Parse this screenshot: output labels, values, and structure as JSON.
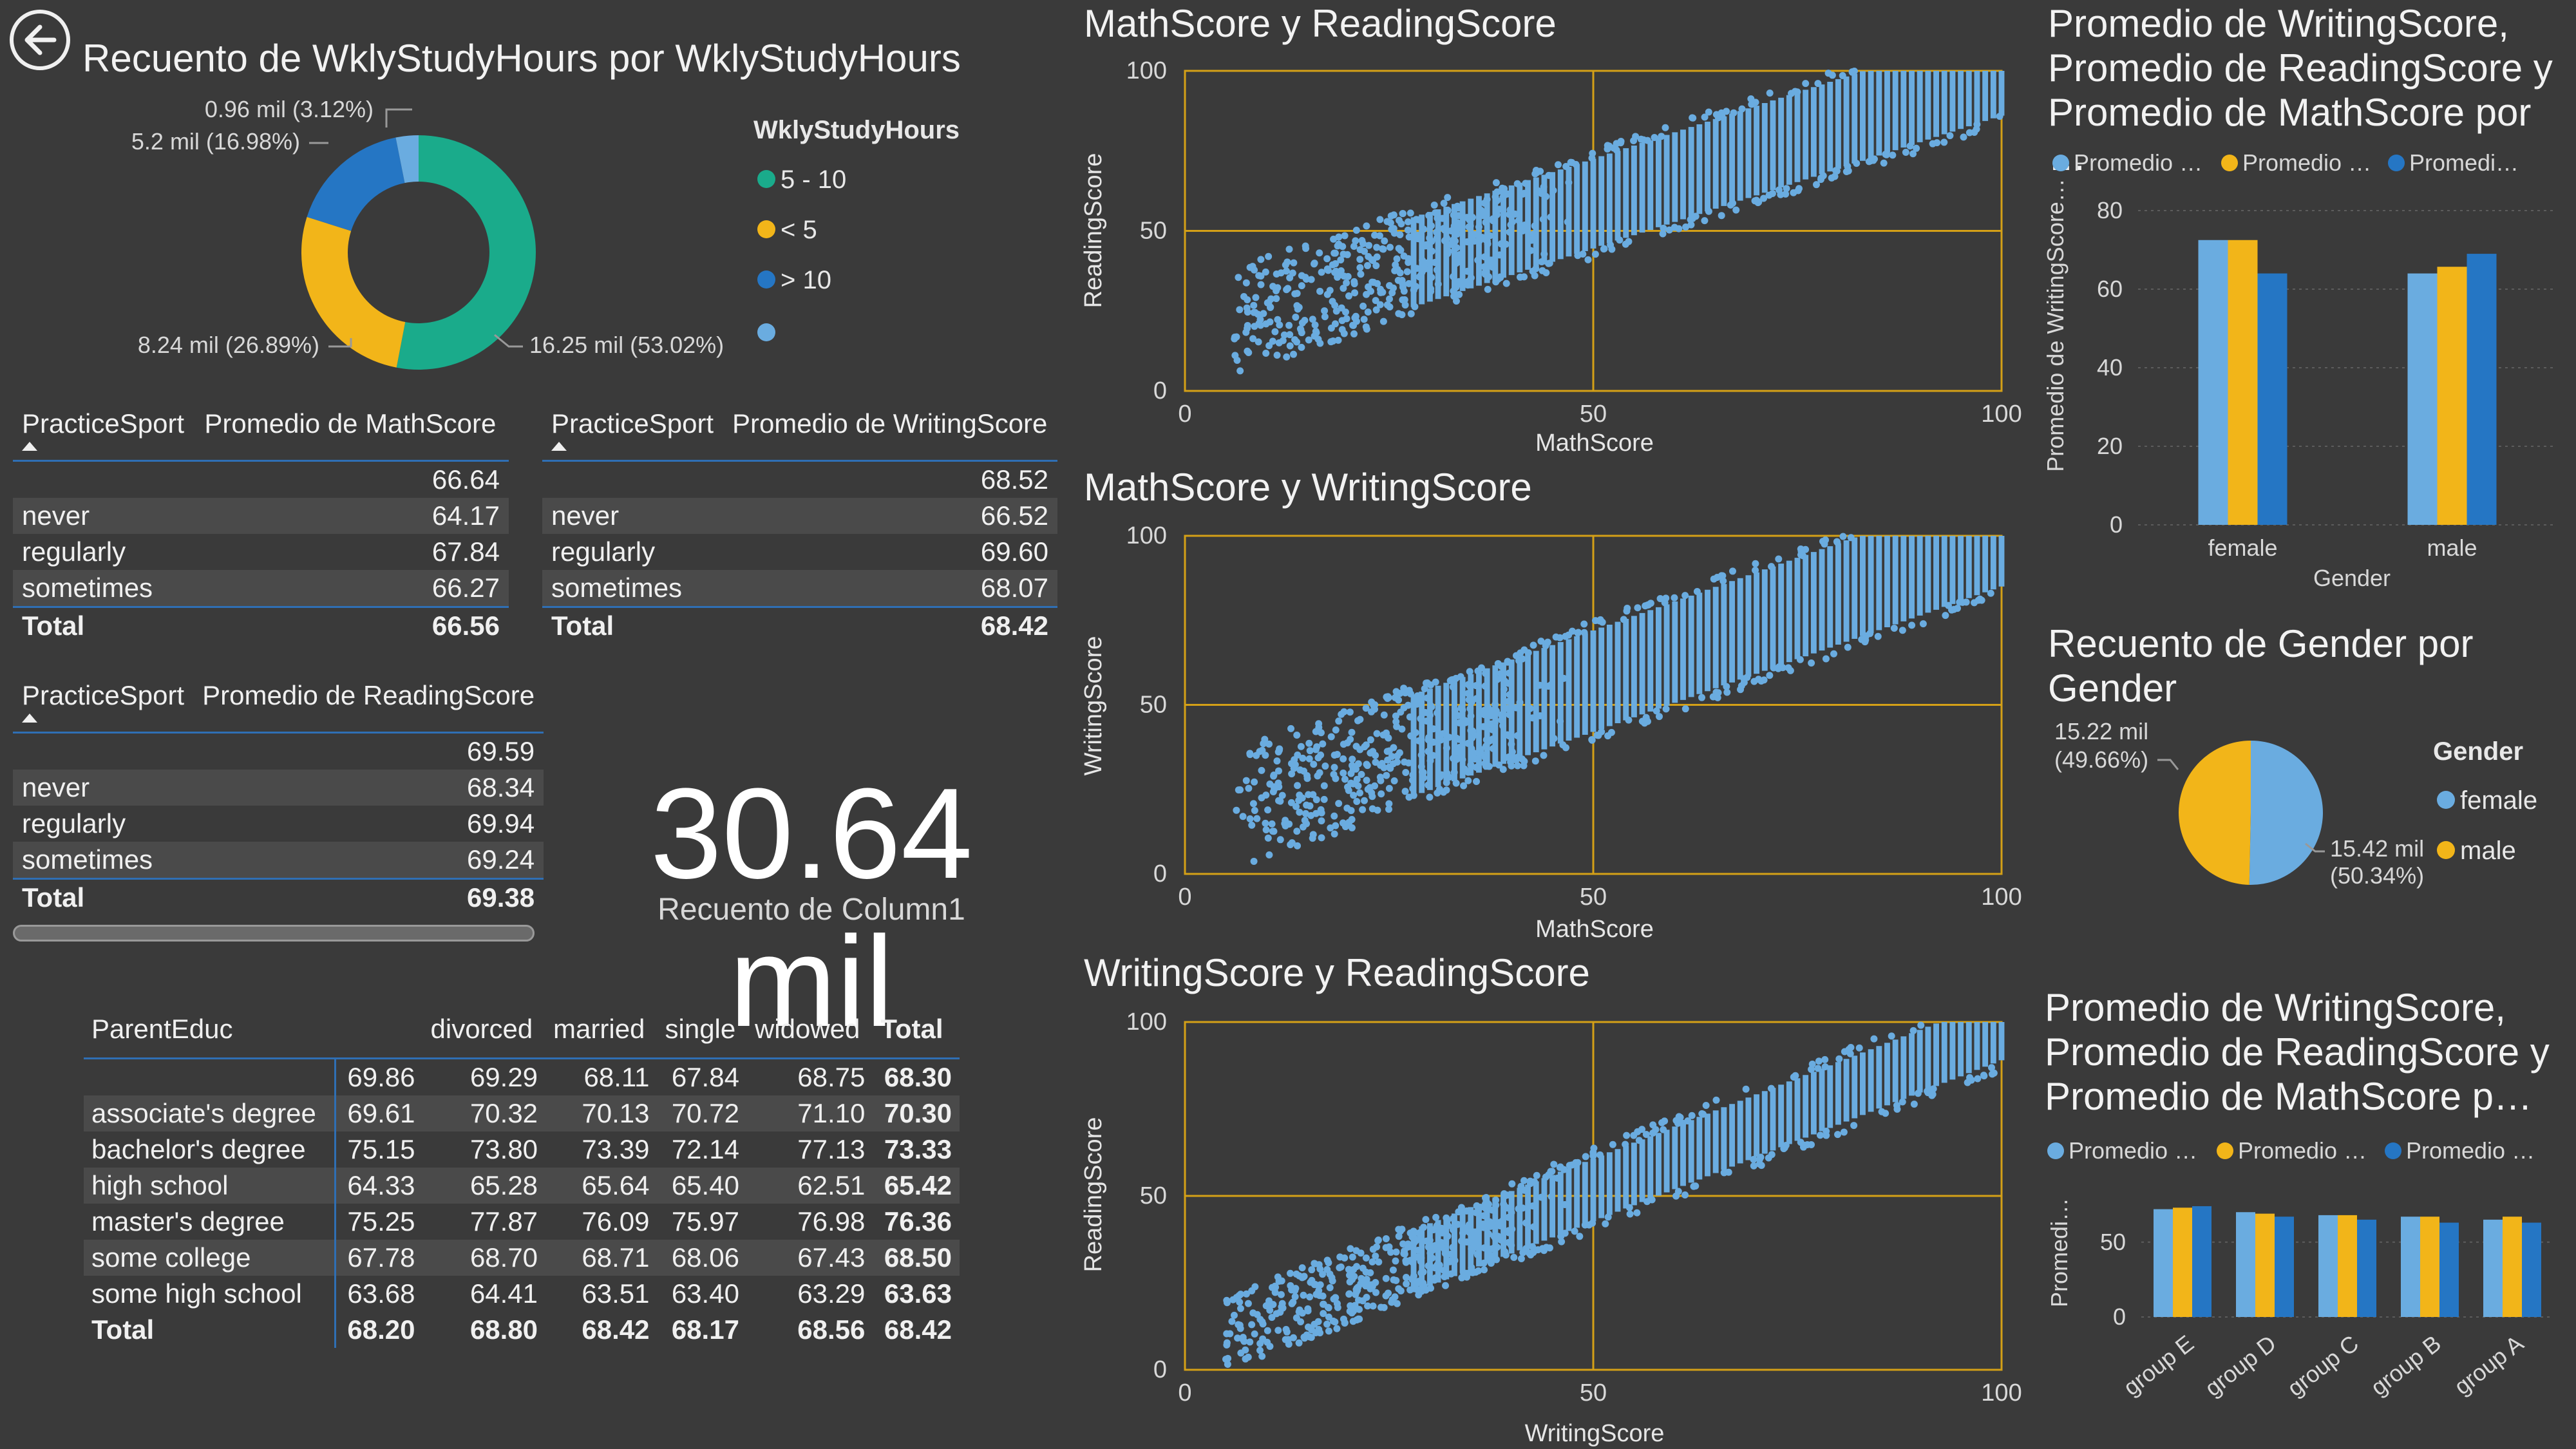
{
  "colors": {
    "teal": "#1aab8b",
    "yellow": "#f2b519",
    "blue_dark": "#2576c4",
    "blue_light": "#6aace0",
    "gold_line": "#d4a017",
    "scatter": "#6aace0"
  },
  "icons": {
    "back": "back-arrow-icon"
  },
  "donut": {
    "title": "Recuento de WklyStudyHours por WklyStudyHours",
    "legend_title": "WklyStudyHours",
    "legend": [
      "5 - 10",
      "< 5",
      "> 10",
      ""
    ],
    "labels": [
      "16.25 mil (53.02%)",
      "8.24 mil (26.89%)",
      "5.2 mil (16.98%)",
      "0.96 mil (3.12%)"
    ]
  },
  "table_math": {
    "h1": "PracticeSport",
    "h2": "Promedio de MathScore",
    "rows": [
      [
        "",
        "66.64"
      ],
      [
        "never",
        "64.17"
      ],
      [
        "regularly",
        "67.84"
      ],
      [
        "sometimes",
        "66.27"
      ]
    ],
    "total": [
      "Total",
      "66.56"
    ]
  },
  "table_writing": {
    "h1": "PracticeSport",
    "h2": "Promedio de WritingScore",
    "rows": [
      [
        "",
        "68.52"
      ],
      [
        "never",
        "66.52"
      ],
      [
        "regularly",
        "69.60"
      ],
      [
        "sometimes",
        "68.07"
      ]
    ],
    "total": [
      "Total",
      "68.42"
    ]
  },
  "table_reading": {
    "h1": "PracticeSport",
    "h2": "Promedio de ReadingScore",
    "rows": [
      [
        "",
        "69.59"
      ],
      [
        "never",
        "68.34"
      ],
      [
        "regularly",
        "69.94"
      ],
      [
        "sometimes",
        "69.24"
      ]
    ],
    "total": [
      "Total",
      "69.38"
    ]
  },
  "kpi": {
    "value": "30.64 mil",
    "label": "Recuento de Column1"
  },
  "matrix": {
    "headers": [
      "ParentEduc",
      "",
      "divorced",
      "married",
      "single",
      "widowed",
      "Total"
    ],
    "rows": [
      [
        "",
        "69.86",
        "69.29",
        "68.11",
        "67.84",
        "68.75",
        "68.30"
      ],
      [
        "associate's degree",
        "69.61",
        "70.32",
        "70.13",
        "70.72",
        "71.10",
        "70.30"
      ],
      [
        "bachelor's degree",
        "75.15",
        "73.80",
        "73.39",
        "72.14",
        "77.13",
        "73.33"
      ],
      [
        "high school",
        "64.33",
        "65.28",
        "65.64",
        "65.40",
        "62.51",
        "65.42"
      ],
      [
        "master's degree",
        "75.25",
        "77.87",
        "76.09",
        "75.97",
        "76.98",
        "76.36"
      ],
      [
        "some college",
        "67.78",
        "68.70",
        "68.71",
        "68.06",
        "67.43",
        "68.50"
      ],
      [
        "some high school",
        "63.68",
        "64.41",
        "63.51",
        "63.40",
        "63.29",
        "63.63"
      ],
      [
        "Total",
        "68.20",
        "68.80",
        "68.42",
        "68.17",
        "68.56",
        "68.42"
      ]
    ]
  },
  "scatter1": {
    "title": "MathScore y ReadingScore",
    "xlabel": "MathScore",
    "ylabel": "ReadingScore"
  },
  "scatter2": {
    "title": "MathScore y WritingScore",
    "xlabel": "MathScore",
    "ylabel": "WritingScore"
  },
  "scatter3": {
    "title": "WritingScore y ReadingScore",
    "xlabel": "WritingScore",
    "ylabel": "ReadingScore"
  },
  "bar_gender": {
    "title": "Promedio de WritingScore, Promedio de ReadingScore y Promedio de MathScore por …",
    "legend": [
      "Promedio …",
      "Promedio …",
      "Promedi…"
    ],
    "ylabel": "Promedio de WritingScore…",
    "xlabel": "Gender"
  },
  "pie_gender": {
    "title": "Recuento de Gender por Gender",
    "legend_title": "Gender",
    "legend": [
      "female",
      "male"
    ],
    "label_left_1": "15.22 mil",
    "label_left_2": "(49.66%)",
    "label_right_1": "15.42 mil",
    "label_right_2": "(50.34%)"
  },
  "bar_group": {
    "title": "Promedio de WritingScore, Promedio de ReadingScore y Promedio de MathScore p…",
    "legend": [
      "Promedio …",
      "Promedio …",
      "Promedio …"
    ],
    "ylabel": "Promedi…"
  },
  "chart_data": [
    {
      "type": "pie",
      "title": "Recuento de WklyStudyHours por WklyStudyHours",
      "categories": [
        "5 - 10",
        "< 5",
        "> 10",
        ""
      ],
      "values": [
        16.25,
        8.24,
        5.2,
        0.96
      ],
      "unit": "mil",
      "donut": true,
      "legend": "right"
    },
    {
      "type": "scatter",
      "title": "MathScore y ReadingScore",
      "xlabel": "MathScore",
      "ylabel": "ReadingScore",
      "xlim": [
        0,
        100
      ],
      "ylim": [
        0,
        100
      ],
      "xticks": [
        0,
        50,
        100
      ],
      "yticks": [
        0,
        50,
        100
      ],
      "trend": {
        "x": [
          0,
          100
        ],
        "y": [
          17,
          100
        ]
      }
    },
    {
      "type": "scatter",
      "title": "MathScore y WritingScore",
      "xlabel": "MathScore",
      "ylabel": "WritingScore",
      "xlim": [
        0,
        100
      ],
      "ylim": [
        0,
        100
      ],
      "xticks": [
        0,
        50,
        100
      ],
      "yticks": [
        0,
        50,
        100
      ],
      "trend": {
        "x": [
          0,
          100
        ],
        "y": [
          14,
          100
        ]
      }
    },
    {
      "type": "scatter",
      "title": "WritingScore y ReadingScore",
      "xlabel": "WritingScore",
      "ylabel": "ReadingScore",
      "xlim": [
        0,
        100
      ],
      "ylim": [
        0,
        100
      ],
      "xticks": [
        0,
        50,
        100
      ],
      "yticks": [
        0,
        50,
        100
      ],
      "trend": {
        "x": [
          5,
          100
        ],
        "y": [
          10,
          98
        ]
      }
    },
    {
      "type": "bar",
      "title": "Promedio de WritingScore, Promedio de ReadingScore y Promedio de MathScore por …",
      "categories": [
        "female",
        "male"
      ],
      "series": [
        {
          "name": "Promedio …",
          "values": [
            72.5,
            64.0
          ]
        },
        {
          "name": "Promedio …",
          "values": [
            72.5,
            65.7
          ]
        },
        {
          "name": "Promedi…",
          "values": [
            64.0,
            69.0
          ]
        }
      ],
      "xlabel": "Gender",
      "ylabel": "Promedio de WritingScore…",
      "ylim": [
        0,
        80
      ],
      "yticks": [
        0,
        20,
        40,
        60,
        80
      ]
    },
    {
      "type": "pie",
      "title": "Recuento de Gender por Gender",
      "categories": [
        "female",
        "male"
      ],
      "values": [
        15.42,
        15.22
      ],
      "unit": "mil"
    },
    {
      "type": "bar",
      "title": "Promedio de WritingScore, Promedio de ReadingScore y Promedio de MathScore p…",
      "categories": [
        "group E",
        "group D",
        "group C",
        "group B",
        "group A"
      ],
      "series": [
        {
          "name": "Promedio …",
          "values": [
            72,
            70,
            68,
            67,
            65
          ]
        },
        {
          "name": "Promedio …",
          "values": [
            73,
            69,
            68,
            67,
            67
          ]
        },
        {
          "name": "Promedio …",
          "values": [
            74,
            67,
            65,
            63,
            63
          ]
        }
      ],
      "ylabel": "Promedi…",
      "ylim": [
        0,
        80
      ],
      "yticks": [
        0,
        50
      ]
    }
  ]
}
